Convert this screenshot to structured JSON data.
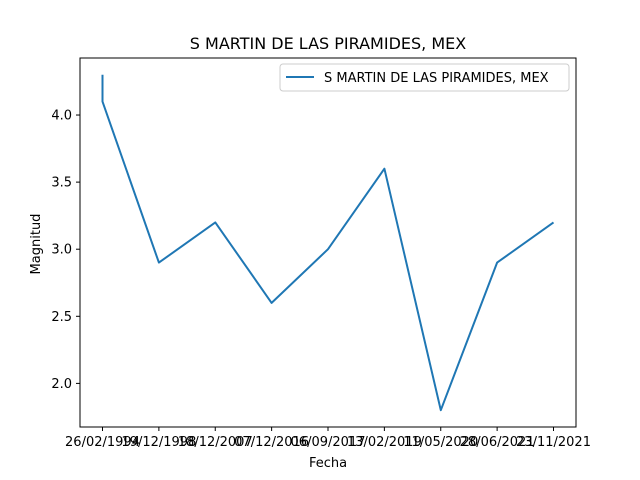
{
  "chart_data": {
    "type": "line",
    "title": "S MARTIN DE LAS PIRAMIDES, MEX",
    "xlabel": "Fecha",
    "ylabel": "Magnitud",
    "categories": [
      "26/02/1994",
      "19/12/1998",
      "18/12/2007",
      "07/12/2016",
      "06/09/2017",
      "13/02/2019",
      "11/05/2020",
      "28/06/2021",
      "23/11/2021"
    ],
    "x_ticks": [
      "26/02/1994",
      "19/12/1998",
      "18/12/2007",
      "07/12/2016",
      "06/09/2017",
      "13/02/2019",
      "11/05/2020",
      "28/06/2021",
      "23/11/2021"
    ],
    "series": [
      {
        "name": "S MARTIN DE LAS PIRAMIDES, MEX",
        "color": "#1f77b4",
        "points": [
          {
            "x": "26/02/1994",
            "y": 4.3
          },
          {
            "x": "26/02/1994",
            "y": 4.1
          },
          {
            "x": "19/12/1998",
            "y": 2.9
          },
          {
            "x": "18/12/2007",
            "y": 3.2
          },
          {
            "x": "07/12/2016",
            "y": 2.6
          },
          {
            "x": "06/09/2017",
            "y": 3.0
          },
          {
            "x": "13/02/2019",
            "y": 3.6
          },
          {
            "x": "11/05/2020",
            "y": 1.8
          },
          {
            "x": "28/06/2021",
            "y": 2.9
          },
          {
            "x": "23/11/2021",
            "y": 3.2
          }
        ]
      }
    ],
    "y_ticks": [
      "2.0",
      "2.5",
      "3.0",
      "3.5",
      "4.0"
    ],
    "y_tick_values": [
      2.0,
      2.5,
      3.0,
      3.5,
      4.0
    ],
    "ylim": [
      1.675,
      4.425
    ],
    "grid": false,
    "legend": {
      "position": "top-right"
    }
  }
}
